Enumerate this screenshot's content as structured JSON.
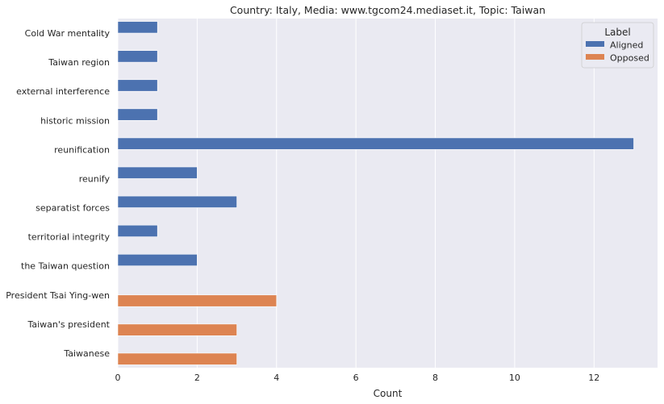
{
  "chart_data": {
    "type": "bar",
    "orientation": "horizontal",
    "title": "Country: Italy, Media: www.tgcom24.mediaset.it, Topic: Taiwan",
    "xlabel": "Count",
    "ylabel": "",
    "xlim": [
      0,
      13.6
    ],
    "x_ticks": [
      0,
      2,
      4,
      6,
      8,
      10,
      12
    ],
    "grid": true,
    "categories": [
      "Cold War mentality",
      "Taiwan region",
      "external interference",
      "historic mission",
      "reunification",
      "reunify",
      "separatist forces",
      "territorial integrity",
      "the Taiwan question",
      "President Tsai Ying-wen",
      "Taiwan's president",
      "Taiwanese"
    ],
    "series": [
      {
        "name": "Aligned",
        "color": "#4c72b0",
        "values": [
          1,
          1,
          1,
          1,
          13,
          2,
          3,
          1,
          2,
          null,
          null,
          null
        ]
      },
      {
        "name": "Opposed",
        "color": "#dd8452",
        "values": [
          null,
          null,
          null,
          null,
          null,
          null,
          null,
          null,
          null,
          4,
          3,
          3
        ]
      }
    ],
    "legend": {
      "title": "Label",
      "position": "top-right"
    }
  }
}
